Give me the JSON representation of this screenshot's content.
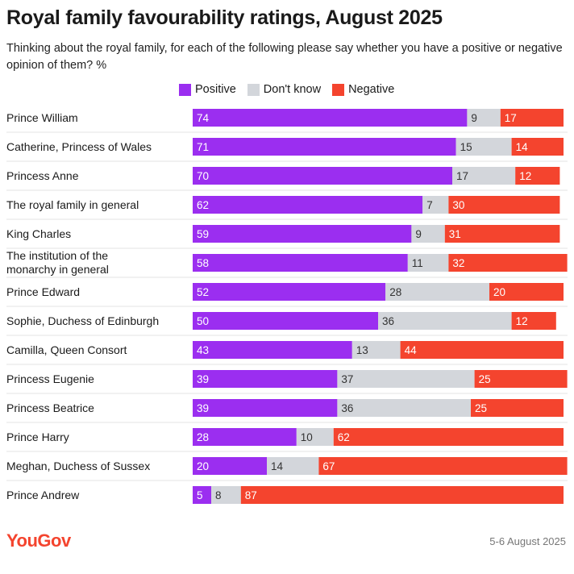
{
  "header": {
    "title": "Royal family favourability ratings, August 2025",
    "subtitle": "Thinking about the royal family, for each of the following please say whether you have a positive or negative opinion of them? %"
  },
  "footer": {
    "logo": "YouGov",
    "date": "5-6 August 2025"
  },
  "colors": {
    "positive": "#9b2ef0",
    "dont_know": "#d3d6db",
    "negative": "#f4442e",
    "logo": "#f4442e"
  },
  "chart_data": {
    "type": "bar",
    "orientation": "horizontal",
    "stacked": true,
    "title": "Royal family favourability ratings, August 2025",
    "unit": "%",
    "legend_position": "top",
    "categories": [
      "Prince William",
      "Catherine, Princess of Wales",
      "Princess Anne",
      "The royal family in general",
      "King Charles",
      "The institution of the monarchy in general",
      "Prince Edward",
      "Sophie, Duchess of Edinburgh",
      "Camilla, Queen Consort",
      "Princess Eugenie",
      "Princess Beatrice",
      "Prince Harry",
      "Meghan, Duchess of Sussex",
      "Prince Andrew"
    ],
    "series": [
      {
        "name": "Positive",
        "values": [
          74,
          71,
          70,
          62,
          59,
          58,
          52,
          50,
          43,
          39,
          39,
          28,
          20,
          5
        ]
      },
      {
        "name": "Don't know",
        "values": [
          9,
          15,
          17,
          7,
          9,
          11,
          28,
          36,
          13,
          37,
          36,
          10,
          14,
          8
        ]
      },
      {
        "name": "Negative",
        "values": [
          17,
          14,
          12,
          30,
          31,
          32,
          20,
          12,
          44,
          25,
          25,
          62,
          67,
          87
        ]
      }
    ]
  }
}
